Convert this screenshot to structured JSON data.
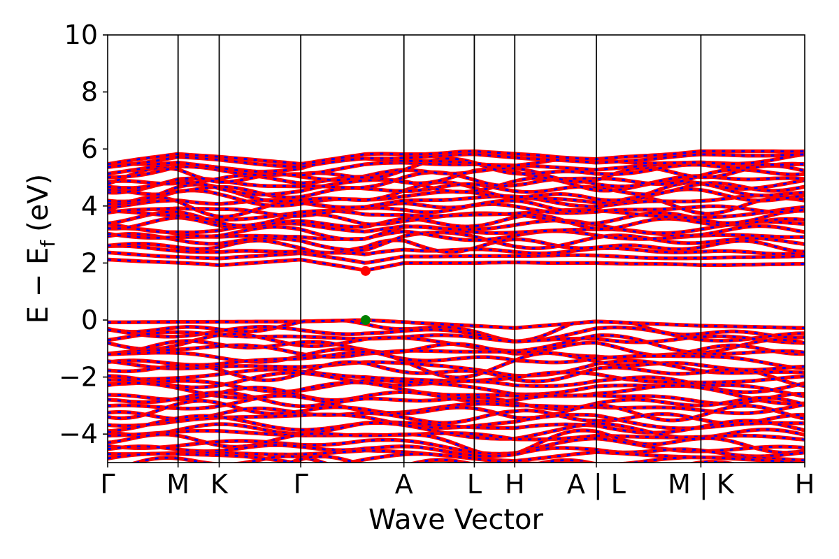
{
  "chart_data": {
    "type": "line",
    "title": "",
    "xlabel": "Wave Vector",
    "ylabel": "E − E",
    "ylabel_sub": "f",
    "ylabel_unit": "(eV)",
    "ylim": [
      -5,
      10
    ],
    "yticks": [
      -4,
      -2,
      0,
      2,
      4,
      6,
      8,
      10
    ],
    "ytick_labels": [
      "−4",
      "−2",
      "0",
      "2",
      "4",
      "6",
      "8",
      "10"
    ],
    "xlim": [
      0,
      1
    ],
    "kpoints": [
      {
        "label": "Γ",
        "x": 0.0
      },
      {
        "label": "M",
        "x": 0.101
      },
      {
        "label": "K",
        "x": 0.16
      },
      {
        "label": "Γ",
        "x": 0.277
      },
      {
        "label": "A",
        "x": 0.425
      },
      {
        "label": "L",
        "x": 0.526
      },
      {
        "label": "H",
        "x": 0.584
      },
      {
        "label": "A | L",
        "x": 0.701
      },
      {
        "label": "M | K",
        "x": 0.851
      },
      {
        "label": "H",
        "x": 1.0
      }
    ],
    "series_colors": {
      "spin_up": "#ff0000",
      "spin_down": "#0000ff"
    },
    "cbm": {
      "x": 0.37,
      "y": 1.72,
      "color": "#ff0000"
    },
    "vbm": {
      "x": 0.37,
      "y": 0.0,
      "color": "#008000"
    },
    "conduction_band_bottom": [
      {
        "x": 0.0,
        "y": 2.12
      },
      {
        "x": 0.16,
        "y": 1.92
      },
      {
        "x": 0.277,
        "y": 2.12
      },
      {
        "x": 0.37,
        "y": 1.72
      },
      {
        "x": 0.425,
        "y": 2.0
      },
      {
        "x": 0.701,
        "y": 2.0
      },
      {
        "x": 0.851,
        "y": 1.92
      },
      {
        "x": 1.0,
        "y": 1.97
      }
    ],
    "conduction_band_top": [
      {
        "x": 0.0,
        "y": 5.48
      },
      {
        "x": 0.101,
        "y": 5.85
      },
      {
        "x": 0.277,
        "y": 5.48
      },
      {
        "x": 0.37,
        "y": 5.82
      },
      {
        "x": 0.526,
        "y": 5.92
      },
      {
        "x": 0.701,
        "y": 5.65
      },
      {
        "x": 0.851,
        "y": 5.92
      },
      {
        "x": 1.0,
        "y": 5.92
      }
    ],
    "valence_band_top": [
      {
        "x": 0.0,
        "y": -0.08
      },
      {
        "x": 0.277,
        "y": -0.05
      },
      {
        "x": 0.37,
        "y": 0.0
      },
      {
        "x": 0.584,
        "y": -0.28
      },
      {
        "x": 0.701,
        "y": -0.05
      },
      {
        "x": 0.851,
        "y": -0.2
      },
      {
        "x": 1.0,
        "y": -0.28
      }
    ]
  }
}
